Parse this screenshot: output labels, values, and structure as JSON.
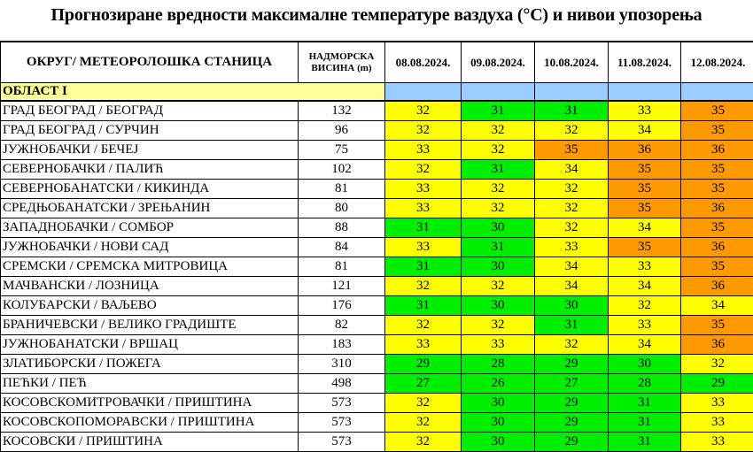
{
  "title": "Прогнозиране вредности максималне температуре ваздуха (°C) и нивои упозорења",
  "headers": {
    "station": "ОКРУГ/ МЕТЕОРОЛОШКА СТАНИЦА",
    "altitude_line1": "НАДМОРСКА",
    "altitude_line2": "ВИСИНА  (m)",
    "dates": [
      "08.08.2024.",
      "09.08.2024.",
      "10.08.2024.",
      "11.08.2024.",
      "12.08.2024."
    ]
  },
  "region": "ОБЛАСТ I",
  "colors": {
    "green": "#00ee00",
    "yellow": "#ffff00",
    "orange": "#ff9900",
    "region_bg": "#ffff99",
    "date_bg": "#99ccff"
  },
  "warning_levels": {
    "green_max": 31,
    "yellow_max": 34
  },
  "rows": [
    {
      "station": "ГРАД БЕОГРАД / БЕОГРАД",
      "altitude": "132",
      "values": [
        32,
        31,
        31,
        33,
        35
      ]
    },
    {
      "station": "ГРАД БЕОГРАД / СУРЧИН",
      "altitude": "96",
      "values": [
        32,
        32,
        32,
        34,
        35
      ]
    },
    {
      "station": "ЈУЖНОБАЧКИ / БЕЧЕЈ",
      "altitude": "75",
      "values": [
        33,
        32,
        35,
        36,
        36
      ]
    },
    {
      "station": "СЕВЕРНОБАЧКИ / ПАЛИЋ",
      "altitude": "102",
      "values": [
        32,
        31,
        34,
        35,
        35
      ]
    },
    {
      "station": "СЕВЕРНОБАНАТСКИ / КИКИНДА",
      "altitude": "81",
      "values": [
        33,
        32,
        32,
        35,
        35
      ]
    },
    {
      "station": "СРЕДЊОБАНАТСКИ / ЗРЕЊАНИН",
      "altitude": "80",
      "values": [
        33,
        32,
        32,
        35,
        36
      ]
    },
    {
      "station": "ЗАПАДНОБАЧКИ / СОМБОР",
      "altitude": "88",
      "values": [
        31,
        30,
        32,
        34,
        35
      ]
    },
    {
      "station": "ЈУЖНОБАЧКИ / НОВИ САД",
      "altitude": "84",
      "values": [
        33,
        31,
        33,
        35,
        36
      ]
    },
    {
      "station": "СРЕМСКИ / СРЕМСКА МИТРОВИЦА",
      "altitude": "81",
      "values": [
        31,
        30,
        34,
        33,
        35
      ]
    },
    {
      "station": "МАЧВАНСКИ / ЛОЗНИЦА",
      "altitude": "121",
      "values": [
        32,
        32,
        34,
        34,
        36
      ]
    },
    {
      "station": "КОЛУБАРСКИ / ВАЉЕВО",
      "altitude": "176",
      "values": [
        31,
        30,
        30,
        32,
        34
      ]
    },
    {
      "station": "БРАНИЧЕВСКИ / ВЕЛИКО ГРАДИШТЕ",
      "altitude": "82",
      "values": [
        32,
        32,
        31,
        33,
        35
      ]
    },
    {
      "station": "ЈУЖНОБАНАТСКИ / ВРШАЦ",
      "altitude": "183",
      "values": [
        33,
        33,
        32,
        34,
        36
      ]
    },
    {
      "station": "ЗЛАТИБОРСКИ / ПОЖЕГА",
      "altitude": "310",
      "values": [
        29,
        28,
        29,
        30,
        32
      ]
    },
    {
      "station": "ПЕЋКИ / ПЕЋ",
      "altitude": "498",
      "values": [
        27,
        26,
        27,
        28,
        29
      ]
    },
    {
      "station": "КОСОВСКОМИТРОВАЧКИ / ПРИШТИНА",
      "altitude": "573",
      "values": [
        32,
        30,
        29,
        31,
        33
      ]
    },
    {
      "station": "КОСОВСКОПОМОРАВСКИ / ПРИШТИНА",
      "altitude": "573",
      "values": [
        32,
        30,
        29,
        31,
        33
      ]
    },
    {
      "station": "КОСОВСКИ / ПРИШТИНА",
      "altitude": "573",
      "values": [
        32,
        30,
        29,
        31,
        33
      ]
    }
  ]
}
